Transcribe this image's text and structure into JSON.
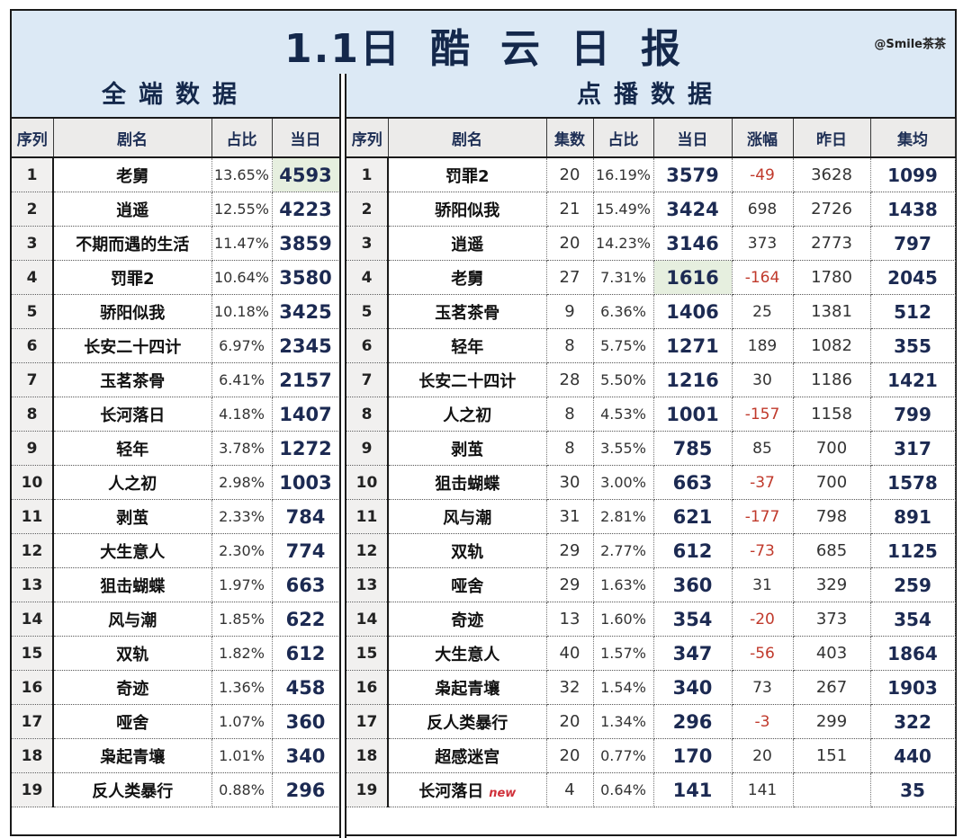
{
  "header": {
    "title_parts": [
      "1.1日",
      "酷",
      "云",
      "日",
      "报"
    ],
    "watermark": "@Smile茶茶"
  },
  "left_panel": {
    "title": "全端数据",
    "columns": [
      "序列",
      "剧名",
      "占比",
      "当日"
    ],
    "rows": [
      {
        "rank": "1",
        "name": "老舅",
        "pct": "13.65%",
        "today": "4593",
        "highlight": true
      },
      {
        "rank": "2",
        "name": "逍遥",
        "pct": "12.55%",
        "today": "4223"
      },
      {
        "rank": "3",
        "name": "不期而遇的生活",
        "pct": "11.47%",
        "today": "3859"
      },
      {
        "rank": "4",
        "name": "罚罪2",
        "pct": "10.64%",
        "today": "3580"
      },
      {
        "rank": "5",
        "name": "骄阳似我",
        "pct": "10.18%",
        "today": "3425"
      },
      {
        "rank": "6",
        "name": "长安二十四计",
        "pct": "6.97%",
        "today": "2345"
      },
      {
        "rank": "7",
        "name": "玉茗茶骨",
        "pct": "6.41%",
        "today": "2157"
      },
      {
        "rank": "8",
        "name": "长河落日",
        "pct": "4.18%",
        "today": "1407"
      },
      {
        "rank": "9",
        "name": "轻年",
        "pct": "3.78%",
        "today": "1272"
      },
      {
        "rank": "10",
        "name": "人之初",
        "pct": "2.98%",
        "today": "1003"
      },
      {
        "rank": "11",
        "name": "剥茧",
        "pct": "2.33%",
        "today": "784"
      },
      {
        "rank": "12",
        "name": "大生意人",
        "pct": "2.30%",
        "today": "774"
      },
      {
        "rank": "13",
        "name": "狙击蝴蝶",
        "pct": "1.97%",
        "today": "663"
      },
      {
        "rank": "14",
        "name": "风与潮",
        "pct": "1.85%",
        "today": "622"
      },
      {
        "rank": "15",
        "name": "双轨",
        "pct": "1.82%",
        "today": "612"
      },
      {
        "rank": "16",
        "name": "奇迹",
        "pct": "1.36%",
        "today": "458"
      },
      {
        "rank": "17",
        "name": "哑舍",
        "pct": "1.07%",
        "today": "360"
      },
      {
        "rank": "18",
        "name": "枭起青壤",
        "pct": "1.01%",
        "today": "340"
      },
      {
        "rank": "19",
        "name": "反人类暴行",
        "pct": "0.88%",
        "today": "296"
      }
    ]
  },
  "right_panel": {
    "title": "点播数据",
    "columns": [
      "序列",
      "剧名",
      "集数",
      "占比",
      "当日",
      "涨幅",
      "昨日",
      "集均"
    ],
    "rows": [
      {
        "rank": "1",
        "name": "罚罪2",
        "eps": "20",
        "pct": "16.19%",
        "today": "3579",
        "delta": "-49",
        "yest": "3628",
        "avg": "1099"
      },
      {
        "rank": "2",
        "name": "骄阳似我",
        "eps": "21",
        "pct": "15.49%",
        "today": "3424",
        "delta": "698",
        "yest": "2726",
        "avg": "1438"
      },
      {
        "rank": "3",
        "name": "逍遥",
        "eps": "20",
        "pct": "14.23%",
        "today": "3146",
        "delta": "373",
        "yest": "2773",
        "avg": "797"
      },
      {
        "rank": "4",
        "name": "老舅",
        "eps": "27",
        "pct": "7.31%",
        "today": "1616",
        "delta": "-164",
        "yest": "1780",
        "avg": "2045",
        "highlight": true
      },
      {
        "rank": "5",
        "name": "玉茗茶骨",
        "eps": "9",
        "pct": "6.36%",
        "today": "1406",
        "delta": "25",
        "yest": "1381",
        "avg": "512"
      },
      {
        "rank": "6",
        "name": "轻年",
        "eps": "8",
        "pct": "5.75%",
        "today": "1271",
        "delta": "189",
        "yest": "1082",
        "avg": "355"
      },
      {
        "rank": "7",
        "name": "长安二十四计",
        "eps": "28",
        "pct": "5.50%",
        "today": "1216",
        "delta": "30",
        "yest": "1186",
        "avg": "1421"
      },
      {
        "rank": "8",
        "name": "人之初",
        "eps": "8",
        "pct": "4.53%",
        "today": "1001",
        "delta": "-157",
        "yest": "1158",
        "avg": "799"
      },
      {
        "rank": "9",
        "name": "剥茧",
        "eps": "8",
        "pct": "3.55%",
        "today": "785",
        "delta": "85",
        "yest": "700",
        "avg": "317"
      },
      {
        "rank": "10",
        "name": "狙击蝴蝶",
        "eps": "30",
        "pct": "3.00%",
        "today": "663",
        "delta": "-37",
        "yest": "700",
        "avg": "1578"
      },
      {
        "rank": "11",
        "name": "风与潮",
        "eps": "31",
        "pct": "2.81%",
        "today": "621",
        "delta": "-177",
        "yest": "798",
        "avg": "891"
      },
      {
        "rank": "12",
        "name": "双轨",
        "eps": "29",
        "pct": "2.77%",
        "today": "612",
        "delta": "-73",
        "yest": "685",
        "avg": "1125"
      },
      {
        "rank": "13",
        "name": "哑舍",
        "eps": "29",
        "pct": "1.63%",
        "today": "360",
        "delta": "31",
        "yest": "329",
        "avg": "259"
      },
      {
        "rank": "14",
        "name": "奇迹",
        "eps": "13",
        "pct": "1.60%",
        "today": "354",
        "delta": "-20",
        "yest": "373",
        "avg": "354"
      },
      {
        "rank": "15",
        "name": "大生意人",
        "eps": "40",
        "pct": "1.57%",
        "today": "347",
        "delta": "-56",
        "yest": "403",
        "avg": "1864"
      },
      {
        "rank": "16",
        "name": "枭起青壤",
        "eps": "32",
        "pct": "1.54%",
        "today": "340",
        "delta": "73",
        "yest": "267",
        "avg": "1903"
      },
      {
        "rank": "17",
        "name": "反人类暴行",
        "eps": "20",
        "pct": "1.34%",
        "today": "296",
        "delta": "-3",
        "yest": "299",
        "avg": "322"
      },
      {
        "rank": "18",
        "name": "超感迷宫",
        "eps": "20",
        "pct": "0.77%",
        "today": "170",
        "delta": "20",
        "yest": "151",
        "avg": "440"
      },
      {
        "rank": "19",
        "name": "长河落日",
        "tag": "new",
        "eps": "4",
        "pct": "0.64%",
        "today": "141",
        "delta": "141",
        "yest": "",
        "avg": "35"
      }
    ]
  },
  "colors": {
    "header_bg": "#dce9f5",
    "title_text": "#14284b",
    "number_text": "#1c2a52",
    "negative": "#c0392b",
    "highlight_cell": "#e6efdf",
    "new_tag": "#d0303a"
  }
}
